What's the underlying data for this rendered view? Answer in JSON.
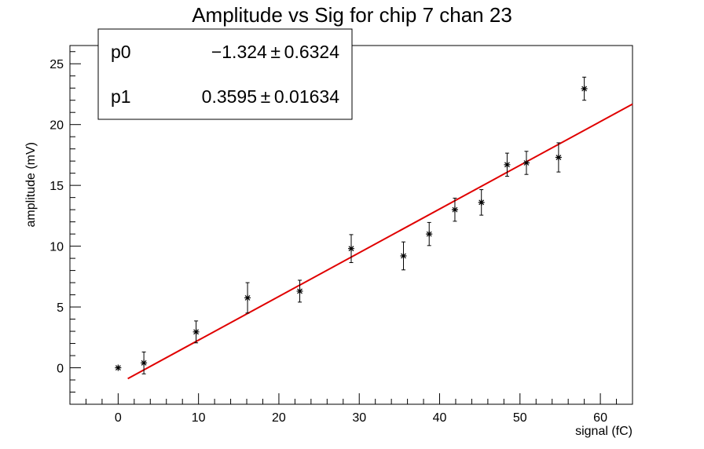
{
  "chart_data": {
    "type": "scatter",
    "title": "Amplitude vs Sig for chip 7 chan 23",
    "xlabel": "signal (fC)",
    "ylabel": "amplitude (mV)",
    "xlim": [
      -6,
      64
    ],
    "ylim": [
      -3,
      26.5
    ],
    "x_ticks": [
      0,
      10,
      20,
      30,
      40,
      50,
      60
    ],
    "y_ticks": [
      0,
      5,
      10,
      15,
      20,
      25
    ],
    "x_tick_labels": [
      "0",
      "10",
      "20",
      "30",
      "40",
      "50",
      "60"
    ],
    "y_tick_labels": [
      "0",
      "5",
      "10",
      "15",
      "20",
      "25"
    ],
    "grid": false,
    "legend": "none",
    "points": [
      {
        "x": 0.0,
        "y": 0.0,
        "err": 0.0
      },
      {
        "x": 3.2,
        "y": 0.4,
        "err": 0.9
      },
      {
        "x": 9.7,
        "y": 2.95,
        "err": 0.9
      },
      {
        "x": 16.1,
        "y": 5.75,
        "err": 1.25
      },
      {
        "x": 22.6,
        "y": 6.3,
        "err": 0.9
      },
      {
        "x": 29.0,
        "y": 9.8,
        "err": 1.15
      },
      {
        "x": 35.5,
        "y": 9.2,
        "err": 1.15
      },
      {
        "x": 38.7,
        "y": 11.0,
        "err": 0.95
      },
      {
        "x": 41.9,
        "y": 13.0,
        "err": 0.95
      },
      {
        "x": 45.2,
        "y": 13.6,
        "err": 1.05
      },
      {
        "x": 48.4,
        "y": 16.7,
        "err": 0.95
      },
      {
        "x": 50.8,
        "y": 16.85,
        "err": 0.95
      },
      {
        "x": 54.8,
        "y": 17.3,
        "err": 1.2
      },
      {
        "x": 58.0,
        "y": 22.95,
        "err": 0.95
      }
    ],
    "fit": {
      "p0": -1.324,
      "p1": 0.3595,
      "x_range": [
        1.2,
        64
      ],
      "color": "#e00000"
    },
    "stats_box": [
      {
        "name": "p0",
        "value": "−1.324 ± 0.6324"
      },
      {
        "name": "p1",
        "value": "0.3595 ± 0.01634"
      }
    ],
    "marker_color": "#000000"
  }
}
